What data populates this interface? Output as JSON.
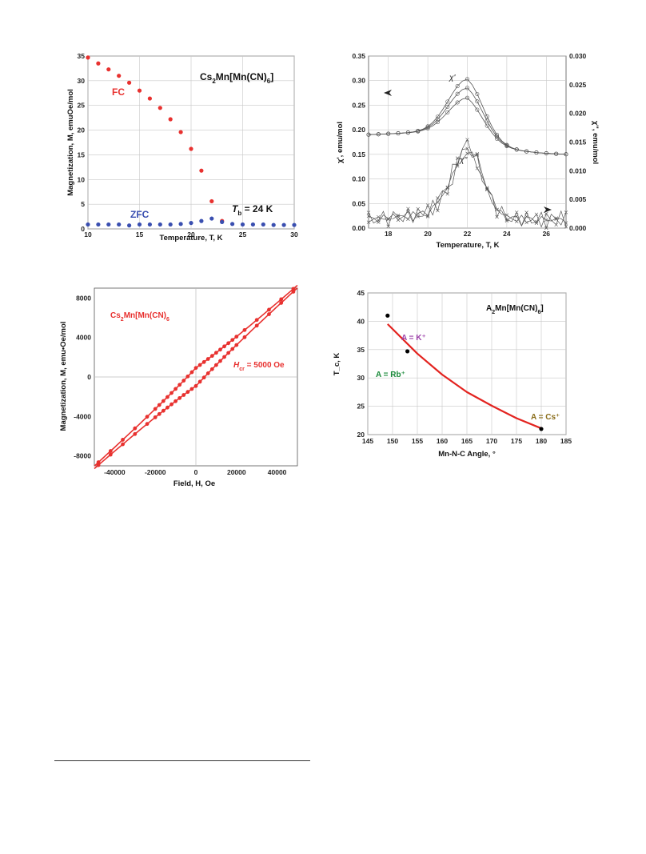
{
  "page": {},
  "chart_data": [
    {
      "type": "scatter",
      "xlabel": "Temperature, T, K",
      "ylabel": "Magnetization, M, emuOe/mol",
      "xlim": [
        10,
        30
      ],
      "ylim": [
        0,
        35
      ],
      "xticks": [
        "10",
        "15",
        "20",
        "25",
        "30"
      ],
      "yticks": [
        "0",
        "5",
        "10",
        "15",
        "20",
        "25",
        "30",
        "35"
      ],
      "grid": true,
      "annotations": {
        "compound_main": "Cs",
        "compound_sub1": "2",
        "compound_mid": "Mn[Mn(CN)",
        "compound_sub2": "6",
        "compound_end": "]",
        "tb_main": "T",
        "tb_sub": "b",
        "tb_value": " = 24 K"
      },
      "series": [
        {
          "name": "FC",
          "color": "#e8312f",
          "x": [
            10,
            11,
            12,
            13,
            14,
            15,
            16,
            17,
            18,
            19,
            20,
            21,
            22,
            23
          ],
          "y": [
            34.7,
            33.5,
            32.3,
            31,
            29.6,
            28,
            26.4,
            24.5,
            22.2,
            19.6,
            16.2,
            11.8,
            5.6,
            1.6
          ]
        },
        {
          "name": "ZFC",
          "color": "#3a4fb0",
          "x": [
            10,
            11,
            12,
            13,
            14,
            15,
            16,
            17,
            18,
            19,
            20,
            21,
            22,
            23,
            24,
            25,
            26,
            27,
            28,
            29,
            30
          ],
          "y": [
            0.9,
            0.9,
            0.9,
            0.9,
            0.7,
            0.9,
            0.9,
            0.9,
            0.9,
            1.0,
            1.2,
            1.6,
            2.1,
            1.4,
            1.0,
            0.9,
            0.9,
            0.9,
            0.8,
            0.8,
            0.8
          ]
        }
      ]
    },
    {
      "type": "line",
      "xlabel": "Temperature, T, K",
      "ylabel_left": "χ', emu/mol",
      "ylabel_right": "χ'', emu/mol",
      "xlim": [
        17,
        27
      ],
      "ylim_left": [
        0,
        0.35
      ],
      "ylim_right": [
        0,
        0.03
      ],
      "xticks": [
        "18",
        "20",
        "22",
        "24",
        "26"
      ],
      "yticks_left": [
        "0.00",
        "0.05",
        "0.10",
        "0.15",
        "0.20",
        "0.25",
        "0.30",
        "0.35"
      ],
      "yticks_right": [
        "0.000",
        "0.005",
        "0.010",
        "0.015",
        "0.020",
        "0.025",
        "0.030"
      ],
      "grid": true,
      "annotations": {
        "chi_prime": "χ'",
        "chi_double": "χ''"
      },
      "peak_temperature": 22,
      "chi_prime_peaks": [
        0.303,
        0.285,
        0.265
      ],
      "chi_prime_base": 0.19,
      "chi_prime_end": 0.148,
      "chi_double_peaks": [
        0.0145,
        0.0138,
        0.0132
      ],
      "chi_double_base": 0.0015
    },
    {
      "type": "scatter",
      "xlabel": "Field, H, Oe",
      "ylabel": "Magnetization, M, emu•Oe/mol",
      "xlim": [
        -50000,
        50000
      ],
      "ylim": [
        -9000,
        9000
      ],
      "xticks": [
        "-40000",
        "-20000",
        "0",
        "20000",
        "40000"
      ],
      "yticks": [
        "-8000",
        "-4000",
        "0",
        "4000",
        "8000"
      ],
      "grid": false,
      "annotations": {
        "compound_main": "Cs",
        "compound_sub1": "2",
        "compound_mid": "Mn[Mn(CN)",
        "compound_sub2": "6",
        "hcr_main": "H",
        "hcr_sub": "cr",
        "hcr_value": " = 5000 Oe"
      },
      "slope": 0.183,
      "coercive_field": 5000,
      "color": "#e8312f"
    },
    {
      "type": "line",
      "xlabel": "Mn-N-C Angle, °",
      "ylabel": "T_c, K",
      "xlim": [
        145,
        185
      ],
      "ylim": [
        20,
        45
      ],
      "xticks": [
        "145",
        "150",
        "155",
        "160",
        "165",
        "170",
        "175",
        "180",
        "185"
      ],
      "yticks": [
        "20",
        "25",
        "30",
        "35",
        "40",
        "45"
      ],
      "grid": true,
      "curve": {
        "x": [
          149,
          155,
          160,
          165,
          170,
          175,
          180
        ],
        "y": [
          39.5,
          34.3,
          30.6,
          27.5,
          25.1,
          22.9,
          21.1
        ]
      },
      "points": [
        {
          "label": "A = K⁺",
          "x": 149,
          "y": 41,
          "color": "#9b3fa8"
        },
        {
          "label": "A = Rb⁺",
          "x": 153,
          "y": 34.7,
          "color": "#1a8a3a"
        },
        {
          "label": "A = Cs⁺",
          "x": 180,
          "y": 21,
          "color": "#8a6d1a"
        }
      ],
      "annotations": {
        "compound_main": "A",
        "compound_sub1": "2",
        "compound_mid": "Mn[Mn(CN)",
        "compound_sub2": "6",
        "compound_end": "]"
      },
      "curve_color": "#e3231f"
    }
  ]
}
